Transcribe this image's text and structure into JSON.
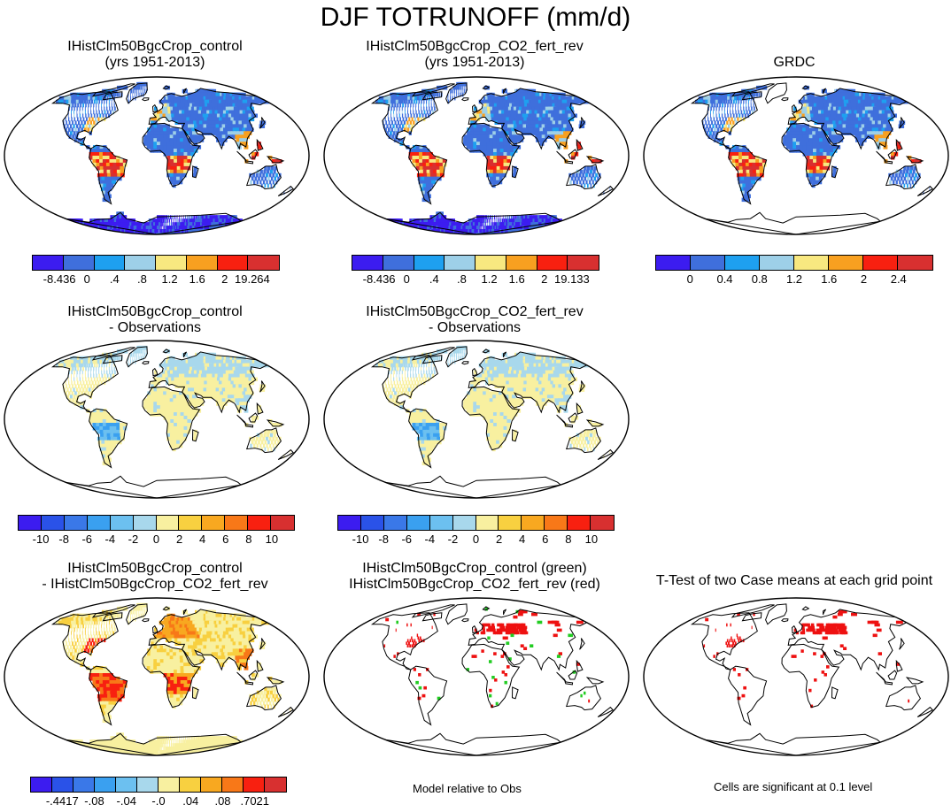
{
  "title": "DJF TOTRUNOFF (mm/d)",
  "panels": {
    "p1": {
      "line1": "IHistClm50BgcCrop_control",
      "line2": "(yrs 1951-2013)"
    },
    "p2": {
      "line1": "IHistClm50BgcCrop_CO2_fert_rev",
      "line2": "(yrs 1951-2013)"
    },
    "p3": {
      "line1": "GRDC",
      "line2": ""
    },
    "p4": {
      "line1": "IHistClm50BgcCrop_control",
      "line2": "- Observations"
    },
    "p5": {
      "line1": "IHistClm50BgcCrop_CO2_fert_rev",
      "line2": "- Observations"
    },
    "p7": {
      "line1": "IHistClm50BgcCrop_control",
      "line2": "- IHistClm50BgcCrop_CO2_fert_rev"
    },
    "p8": {
      "line1": "IHistClm50BgcCrop_control (green)",
      "line2": "IHistClm50BgcCrop_CO2_fert_rev (red)"
    },
    "p9": {
      "line1": "T-Test of two Case means at each grid point",
      "line2": ""
    }
  },
  "colorbars": {
    "cb1": {
      "colors": [
        "#3c1cf0",
        "#3f6fdc",
        "#1ea0f0",
        "#9ed0e8",
        "#f8e880",
        "#f8a020",
        "#f82010",
        "#d83030"
      ],
      "labels": [
        "-8.436",
        "0",
        ".4",
        ".8",
        "1.2",
        "1.6",
        "2",
        "19.264"
      ]
    },
    "cb2": {
      "colors": [
        "#3c1cf0",
        "#3f6fdc",
        "#1ea0f0",
        "#9ed0e8",
        "#f8e880",
        "#f8a020",
        "#f82010",
        "#d83030"
      ],
      "labels": [
        "-8.436",
        "0",
        ".4",
        ".8",
        "1.2",
        "1.6",
        "2",
        "19.133"
      ]
    },
    "cb3": {
      "colors": [
        "#3c1cf0",
        "#3f6fdc",
        "#1ea0f0",
        "#9ed0e8",
        "#f8e880",
        "#f8a020",
        "#f82010",
        "#d83030"
      ],
      "labels": [
        "0",
        "0.4",
        "0.8",
        "1.2",
        "1.6",
        "2",
        "2.4"
      ]
    },
    "cb4": {
      "colors": [
        "#3c1cf0",
        "#2a52e8",
        "#3a78e8",
        "#3aa0f0",
        "#6cc0f0",
        "#a8d8ec",
        "#f8f0a0",
        "#f8d040",
        "#f8a820",
        "#f87818",
        "#f82010",
        "#d83030"
      ],
      "labels": [
        "-10",
        "-8",
        "-6",
        "-4",
        "-2",
        "0",
        "2",
        "4",
        "6",
        "8",
        "10"
      ]
    },
    "cb5": {
      "colors": [
        "#3c1cf0",
        "#2a52e8",
        "#3a78e8",
        "#3aa0f0",
        "#6cc0f0",
        "#a8d8ec",
        "#f8f0a0",
        "#f8d040",
        "#f8a820",
        "#f87818",
        "#f82010",
        "#d83030"
      ],
      "labels": [
        "-10",
        "-8",
        "-6",
        "-4",
        "-2",
        "0",
        "2",
        "4",
        "6",
        "8",
        "10"
      ]
    },
    "cb7": {
      "colors": [
        "#3c1cf0",
        "#2a52e8",
        "#3a78e8",
        "#3aa0f0",
        "#6cc0f0",
        "#a8d8ec",
        "#f8f0a0",
        "#f8d040",
        "#f8a820",
        "#f87818",
        "#f82010",
        "#d83030"
      ],
      "labels": [
        "-.4417",
        "-.08",
        "-.04",
        "-.0",
        ".04",
        ".08",
        ".7021"
      ]
    }
  },
  "notes": {
    "model_relative": "Model relative to Obs",
    "significance": "Cells are significant at 0.1 level"
  },
  "palette": {
    "ocean": "#ffffff",
    "outline": "#000000",
    "sig_green": "#22cc22",
    "sig_red": "#ee1111"
  }
}
